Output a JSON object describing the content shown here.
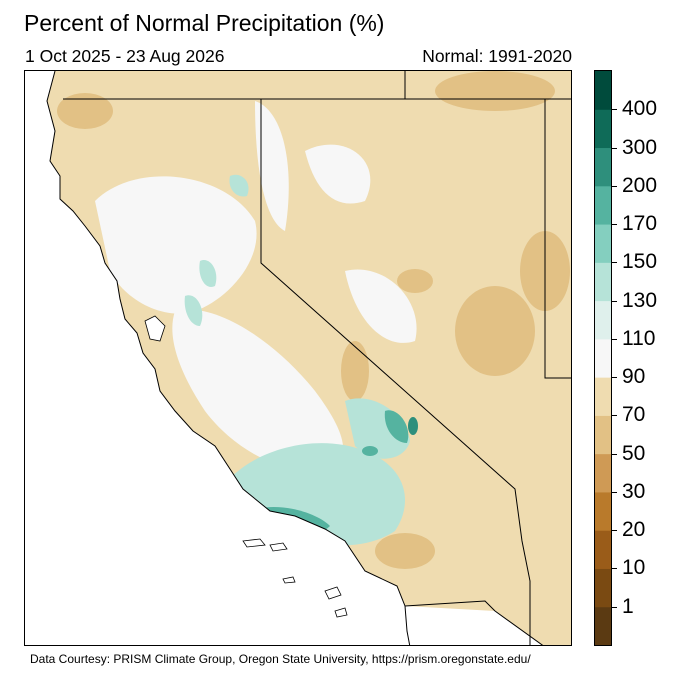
{
  "title": "Percent of Normal Precipitation (%)",
  "date_range": "1 Oct 2025 - 23 Aug 2026",
  "normal_period": "Normal: 1991-2020",
  "credit": "Data Courtesy: PRISM Climate Group, Oregon State University, https://prism.oregonstate.edu/",
  "colorbar": {
    "labels": [
      "400",
      "300",
      "200",
      "170",
      "150",
      "130",
      "110",
      "90",
      "70",
      "50",
      "30",
      "20",
      "10",
      "1"
    ],
    "colors": [
      "#5b3a12",
      "#7a4a12",
      "#9a5c19",
      "#b97a2b",
      "#cf9a55",
      "#e2c185",
      "#efdcb0",
      "#f7f7f7",
      "#dff0ec",
      "#b6e3d8",
      "#84cfbf",
      "#55b3a0",
      "#2e8f7c",
      "#0f6b58",
      "#004b3c"
    ]
  },
  "map_colors": {
    "ocean": "#ffffff",
    "dry": "#efdcb0",
    "near_normal": "#f7f7f7",
    "wet": "#b6e3d8",
    "very_wet": "#55b3a0",
    "wettest": "#2e8f7c",
    "darker_dry": "#e2c185",
    "border": "#000000"
  }
}
